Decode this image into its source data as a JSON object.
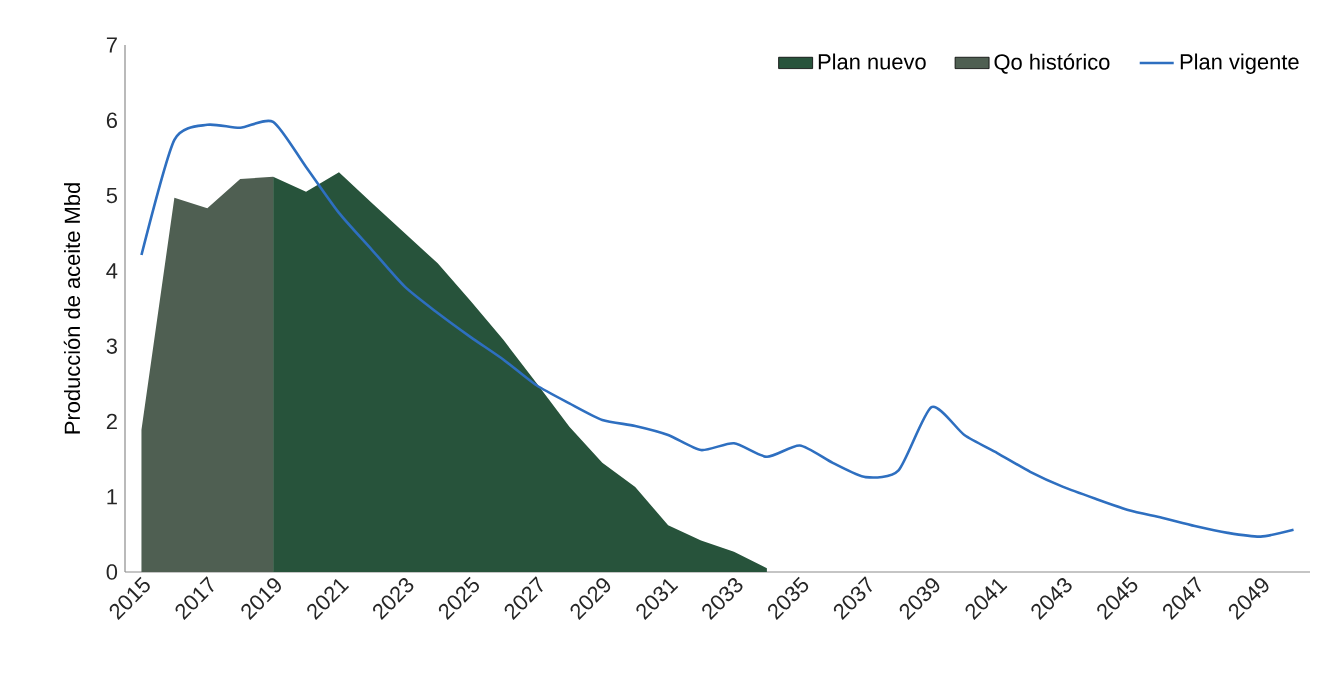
{
  "chart_data": {
    "type": "area",
    "ylabel": "Producción de aceite Mbd",
    "xlim": [
      2014.5,
      2050.5
    ],
    "ylim": [
      0,
      7
    ],
    "xticks": [
      2015,
      2017,
      2019,
      2021,
      2023,
      2025,
      2027,
      2029,
      2031,
      2033,
      2035,
      2037,
      2039,
      2041,
      2043,
      2045,
      2047,
      2049
    ],
    "yticks": [
      0,
      1,
      2,
      3,
      4,
      5,
      6,
      7
    ],
    "grid": false,
    "legend": "top right",
    "marker": "none",
    "series": [
      {
        "name": "Plan nuevo",
        "color": "#27533b",
        "x": [
          2019,
          2020,
          2021,
          2022,
          2023,
          2024,
          2025,
          2026,
          2027,
          2028,
          2029,
          2030,
          2031,
          2032,
          2033,
          2034
        ],
        "values": [
          5.25,
          5.05,
          5.31,
          4.9,
          4.5,
          4.1,
          3.6,
          3.08,
          2.51,
          1.93,
          1.45,
          1.13,
          0.62,
          0.42,
          0.27,
          0.05
        ]
      },
      {
        "name": "Qo histórico",
        "color": "#4f5f52",
        "x": [
          2015,
          2016,
          2017,
          2018,
          2019
        ],
        "values": [
          1.89,
          4.97,
          4.83,
          5.22,
          5.25
        ]
      },
      {
        "name": "Plan vigente",
        "type": "line",
        "color": "#2e6fc0",
        "line_style": "solid",
        "x": [
          2015,
          2016,
          2017,
          2018,
          2019,
          2020,
          2021,
          2022,
          2023,
          2024,
          2025,
          2026,
          2027,
          2028,
          2029,
          2030,
          2031,
          2032,
          2033,
          2034,
          2035,
          2036,
          2037,
          2038,
          2039,
          2040,
          2041,
          2042,
          2043,
          2044,
          2045,
          2046,
          2047,
          2048,
          2049,
          2050
        ],
        "values": [
          4.21,
          5.74,
          5.94,
          5.9,
          5.98,
          5.38,
          4.77,
          4.28,
          3.79,
          3.44,
          3.12,
          2.82,
          2.48,
          2.24,
          2.02,
          1.94,
          1.82,
          1.62,
          1.71,
          1.53,
          1.68,
          1.45,
          1.26,
          1.35,
          2.19,
          1.82,
          1.58,
          1.33,
          1.13,
          0.97,
          0.82,
          0.72,
          0.61,
          0.52,
          0.47,
          0.56
        ]
      }
    ]
  }
}
